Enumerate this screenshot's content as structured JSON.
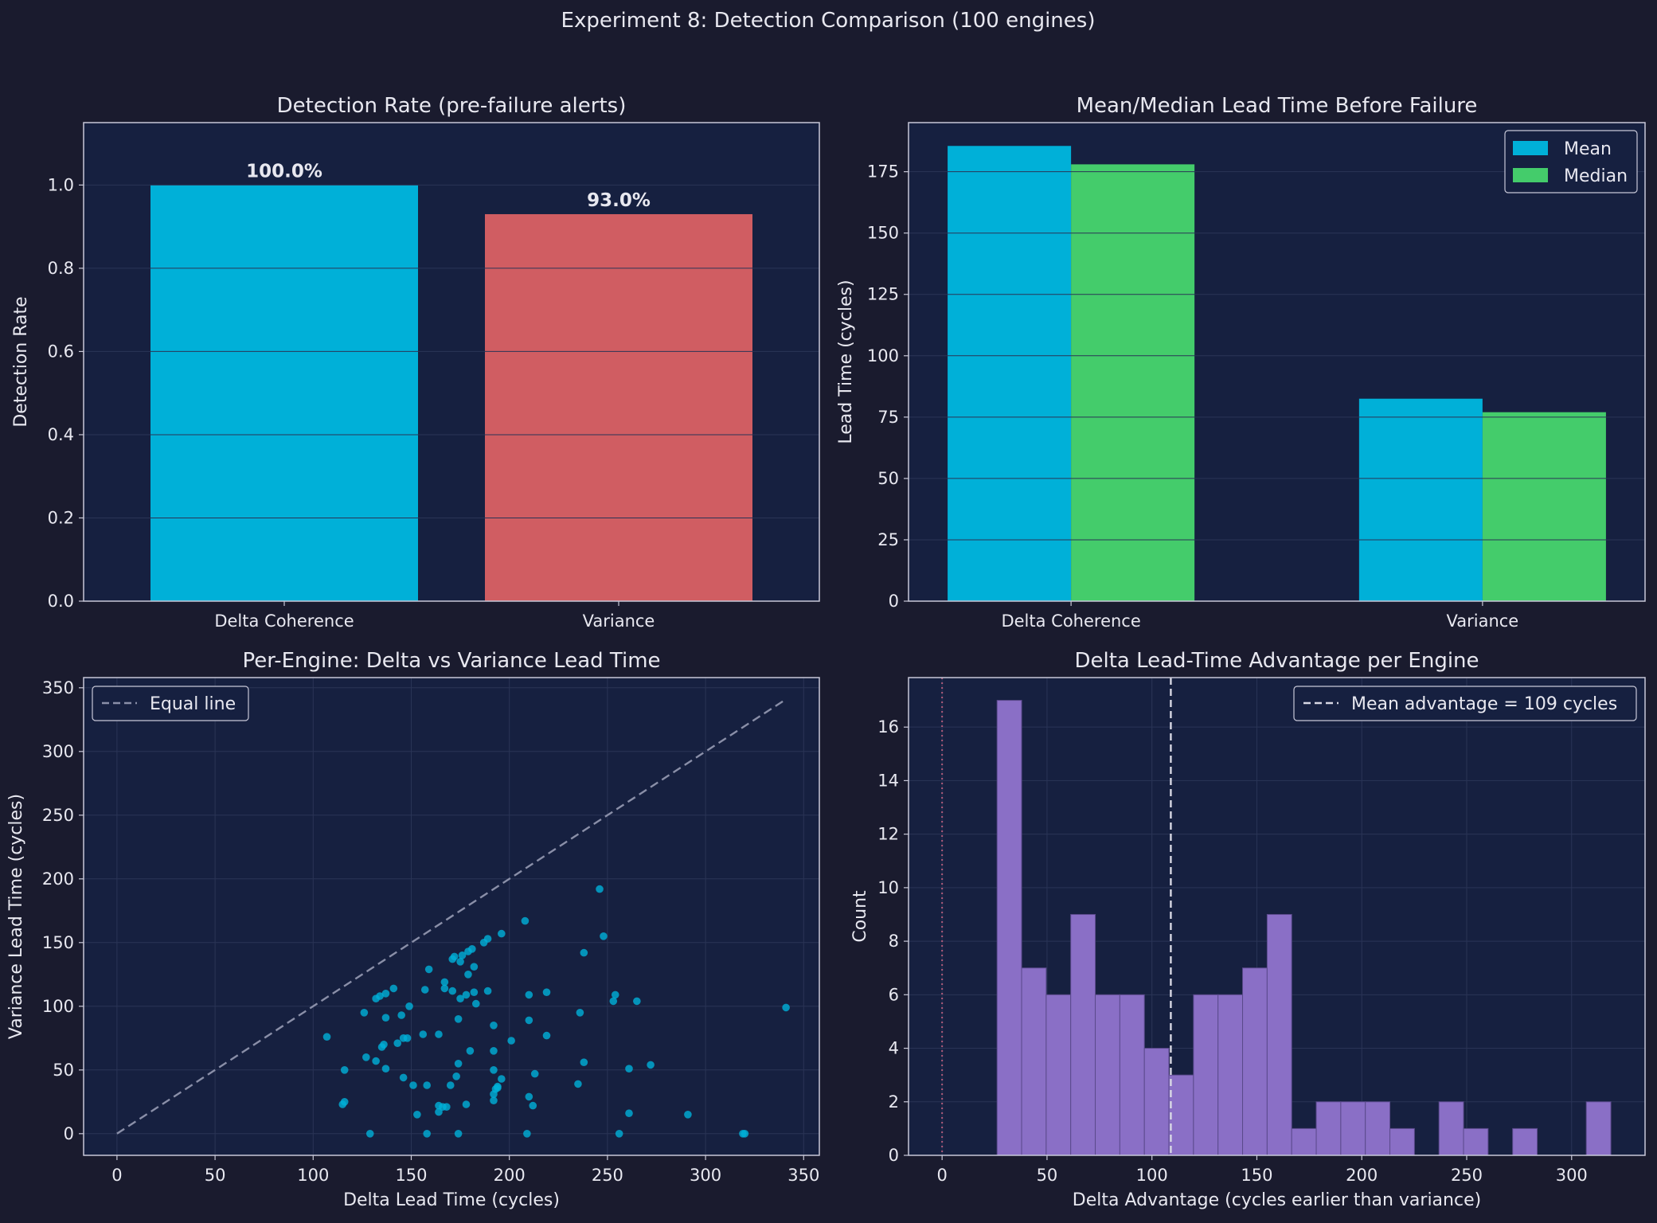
{
  "suptitle": "Experiment 8: Detection Comparison (100 engines)",
  "colors": {
    "background": "#1a1b2e",
    "axes_bg": "#162040",
    "text": "#e8e8f0",
    "spine": "#c8c8d8",
    "grid": "#2a3456",
    "delta": "#00b0d8",
    "variance": "#d05d62",
    "median": "#44cc6b",
    "hist": "#8a6fc6",
    "equal_line": "#8a8fa8",
    "zero_line": "#b05b7a"
  },
  "chart_data": [
    {
      "type": "bar",
      "title": "Detection Rate (pre-failure alerts)",
      "xlabel": "",
      "ylabel": "Detection Rate",
      "categories": [
        "Delta Coherence",
        "Variance"
      ],
      "values": [
        1.0,
        0.93
      ],
      "bar_labels": [
        "100.0%",
        "93.0%"
      ],
      "ylim": [
        0,
        1.15
      ],
      "yticks": [
        0.0,
        0.2,
        0.4,
        0.6,
        0.8,
        1.0
      ],
      "ytick_labels": [
        "0.0",
        "0.2",
        "0.4",
        "0.6",
        "0.8",
        "1.0"
      ],
      "grid": true
    },
    {
      "type": "bar",
      "title": "Mean/Median Lead Time Before Failure",
      "xlabel": "",
      "ylabel": "Lead Time (cycles)",
      "categories": [
        "Delta Coherence",
        "Variance"
      ],
      "series": [
        {
          "name": "Mean",
          "values": [
            185.5,
            82.5
          ]
        },
        {
          "name": "Median",
          "values": [
            178,
            77
          ]
        }
      ],
      "ylim": [
        0,
        195
      ],
      "yticks": [
        0,
        25,
        50,
        75,
        100,
        125,
        150,
        175
      ],
      "legend": "top-right",
      "grid": true
    },
    {
      "type": "scatter",
      "title": "Per-Engine: Delta vs Variance Lead Time",
      "xlabel": "Delta Lead Time (cycles)",
      "ylabel": "Variance Lead Time (cycles)",
      "xlim": [
        -17,
        358
      ],
      "ylim": [
        -17,
        358
      ],
      "xticks": [
        0,
        50,
        100,
        150,
        200,
        250,
        300,
        350
      ],
      "yticks": [
        0,
        50,
        100,
        150,
        200,
        250,
        300,
        350
      ],
      "legend": "top-left",
      "equal_line": {
        "name": "Equal line",
        "from": [
          0,
          0
        ],
        "to": [
          341,
          341
        ]
      },
      "points": [
        [
          107,
          76
        ],
        [
          115,
          23
        ],
        [
          116,
          25
        ],
        [
          116,
          50
        ],
        [
          126,
          95
        ],
        [
          127,
          60
        ],
        [
          129,
          0
        ],
        [
          132,
          106
        ],
        [
          132,
          57
        ],
        [
          134,
          108
        ],
        [
          135,
          68
        ],
        [
          136,
          70
        ],
        [
          137,
          110
        ],
        [
          137,
          91
        ],
        [
          137,
          51
        ],
        [
          141,
          114
        ],
        [
          143,
          71
        ],
        [
          145,
          93
        ],
        [
          146,
          75
        ],
        [
          146,
          44
        ],
        [
          148,
          75
        ],
        [
          149,
          100
        ],
        [
          151,
          38
        ],
        [
          153,
          15
        ],
        [
          156,
          78
        ],
        [
          157,
          113
        ],
        [
          158,
          38
        ],
        [
          158,
          0
        ],
        [
          159,
          129
        ],
        [
          164,
          22
        ],
        [
          164,
          17
        ],
        [
          164,
          78
        ],
        [
          166,
          21
        ],
        [
          167,
          119
        ],
        [
          167,
          114
        ],
        [
          168,
          21
        ],
        [
          170,
          38
        ],
        [
          171,
          137
        ],
        [
          171,
          112
        ],
        [
          172,
          139
        ],
        [
          173,
          45
        ],
        [
          174,
          55
        ],
        [
          174,
          0
        ],
        [
          174,
          90
        ],
        [
          175,
          106
        ],
        [
          175,
          135
        ],
        [
          176,
          140
        ],
        [
          178,
          23
        ],
        [
          178,
          109
        ],
        [
          179,
          143
        ],
        [
          179,
          125
        ],
        [
          180,
          65
        ],
        [
          181,
          145
        ],
        [
          182,
          111
        ],
        [
          182,
          131
        ],
        [
          183,
          102
        ],
        [
          187,
          150
        ],
        [
          189,
          112
        ],
        [
          189,
          153
        ],
        [
          192,
          85
        ],
        [
          192,
          65
        ],
        [
          192,
          50
        ],
        [
          192,
          31
        ],
        [
          192,
          26
        ],
        [
          193,
          35
        ],
        [
          194,
          37
        ],
        [
          194,
          36
        ],
        [
          196,
          157
        ],
        [
          196,
          43
        ],
        [
          201,
          73
        ],
        [
          208,
          167
        ],
        [
          209,
          0
        ],
        [
          210,
          89
        ],
        [
          210,
          109
        ],
        [
          210,
          29
        ],
        [
          212,
          22
        ],
        [
          213,
          47
        ],
        [
          219,
          111
        ],
        [
          219,
          77
        ],
        [
          235,
          39
        ],
        [
          236,
          95
        ],
        [
          238,
          56
        ],
        [
          238,
          142
        ],
        [
          246,
          192
        ],
        [
          248,
          155
        ],
        [
          253,
          104
        ],
        [
          254,
          109
        ],
        [
          256,
          0
        ],
        [
          261,
          51
        ],
        [
          261,
          16
        ],
        [
          265,
          104
        ],
        [
          272,
          54
        ],
        [
          291,
          15
        ],
        [
          319,
          0
        ],
        [
          320,
          0
        ],
        [
          341,
          99
        ]
      ],
      "grid": true
    },
    {
      "type": "bar",
      "subtype": "histogram",
      "title": "Delta Lead-Time Advantage per Engine",
      "xlabel": "Delta Advantage (cycles earlier than variance)",
      "ylabel": "Count",
      "xlim": [
        -16,
        335
      ],
      "ylim": [
        0,
        17.85
      ],
      "xticks": [
        0,
        50,
        100,
        150,
        200,
        250,
        300
      ],
      "yticks": [
        0,
        2,
        4,
        6,
        8,
        10,
        12,
        14,
        16
      ],
      "bin_start": 26.2,
      "bin_width": 11.7,
      "counts": [
        17,
        7,
        6,
        9,
        6,
        6,
        4,
        3,
        6,
        6,
        7,
        9,
        1,
        2,
        2,
        2,
        1,
        0,
        2,
        1,
        0,
        1,
        0,
        0,
        2
      ],
      "mean_line": {
        "name": "Mean advantage = 109 cycles",
        "value": 109
      },
      "zero_line": 0,
      "legend": "top-right",
      "grid": true
    }
  ]
}
